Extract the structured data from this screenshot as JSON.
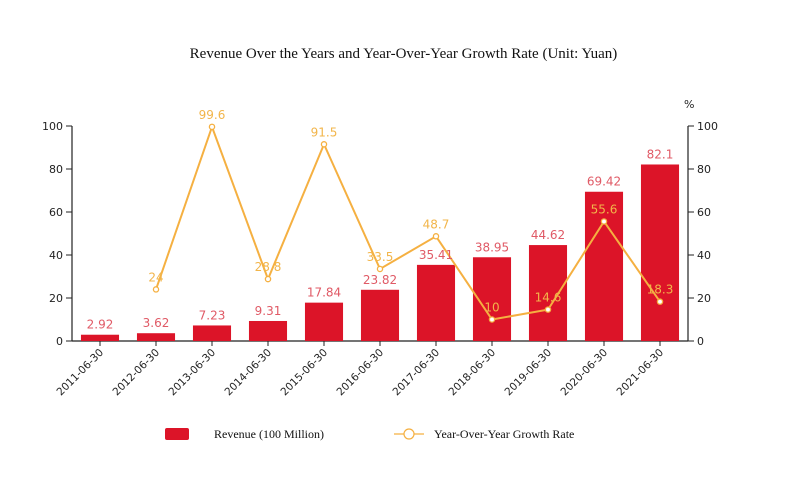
{
  "chart_data": {
    "type": "bar",
    "title": "Revenue Over the Years and Year-Over-Year Growth Rate (Unit: Yuan)",
    "categories": [
      "2011-06-30",
      "2012-06-30",
      "2013-06-30",
      "2014-06-30",
      "2015-06-30",
      "2016-06-30",
      "2017-06-30",
      "2018-06-30",
      "2019-06-30",
      "2020-06-30",
      "2021-06-30"
    ],
    "series": [
      {
        "name": "Revenue (100 Million)",
        "type": "bar",
        "axis": "left",
        "color": "#dc1428",
        "values": [
          2.92,
          3.62,
          7.23,
          9.31,
          17.84,
          23.82,
          35.41,
          38.95,
          44.62,
          69.42,
          82.1
        ],
        "labels": [
          "2.92",
          "3.62",
          "7.23",
          "9.31",
          "17.84",
          "23.82",
          "35.41",
          "38.95",
          "44.62",
          "69.42",
          "82.1"
        ]
      },
      {
        "name": "Year-Over-Year Growth Rate",
        "type": "line",
        "axis": "right",
        "color": "#f5b041",
        "values": [
          null,
          24,
          99.6,
          28.8,
          91.5,
          33.5,
          48.7,
          10,
          14.6,
          55.6,
          18.3
        ],
        "labels": [
          "",
          "24",
          "99.6",
          "28.8",
          "91.5",
          "33.5",
          "48.7",
          "10",
          "14.6",
          "55.6",
          "18.3"
        ]
      }
    ],
    "y_left": {
      "range": [
        0,
        100
      ],
      "ticks": [
        0,
        20,
        40,
        60,
        80,
        100
      ]
    },
    "y_right": {
      "range": [
        0,
        100
      ],
      "ticks": [
        0,
        20,
        40,
        60,
        80,
        100
      ],
      "unit": "%"
    },
    "grid": false,
    "legend": {
      "position": "bottom",
      "items": [
        "Revenue (100 Million)",
        "Year-Over-Year Growth Rate"
      ]
    }
  }
}
